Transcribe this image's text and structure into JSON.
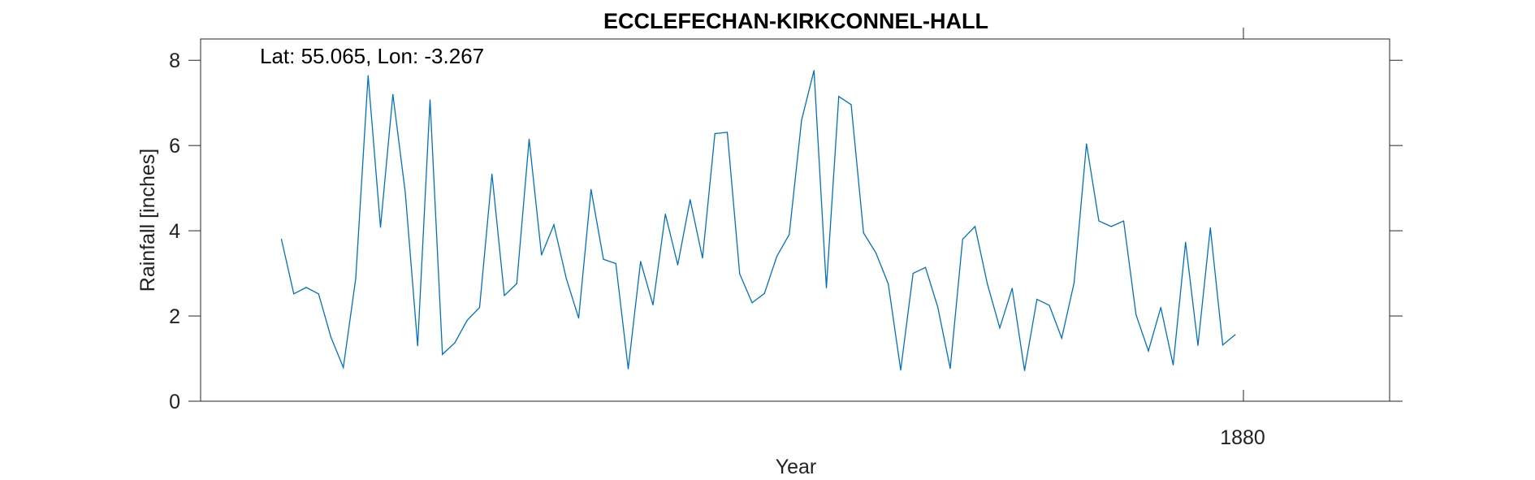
{
  "chart_data": {
    "type": "line",
    "title": "ECCLEFECHAN-KIRKCONNEL-HALL",
    "annotation": "Lat: 55.065, Lon: -3.267",
    "xlabel": "Year",
    "ylabel": "Rainfall [inches]",
    "ylim": [
      0,
      8.5
    ],
    "yticks": [
      0,
      2,
      4,
      6,
      8
    ],
    "xtick_labels": [
      "1880"
    ],
    "grid": false,
    "color": "#0072BD",
    "series": [
      {
        "values": [
          3.8,
          2.52,
          2.67,
          2.52,
          1.5,
          0.79,
          2.88,
          7.64,
          4.08,
          7.2,
          4.9,
          1.3,
          7.07,
          1.1,
          1.37,
          1.9,
          2.2,
          5.33,
          2.48,
          2.76,
          6.15,
          3.43,
          4.14,
          2.88,
          1.95,
          4.97,
          3.33,
          3.23,
          0.76,
          3.28,
          2.26,
          4.39,
          3.2,
          4.73,
          3.36,
          6.28,
          6.31,
          2.99,
          2.31,
          2.53,
          3.4,
          3.91,
          6.6,
          7.76,
          2.66,
          7.15,
          6.96,
          3.95,
          3.48,
          2.75,
          0.73,
          3.0,
          3.14,
          2.2,
          0.77,
          3.8,
          4.1,
          2.75,
          1.72,
          2.65,
          0.72,
          2.39,
          2.25,
          1.48,
          2.78,
          6.04,
          4.23,
          4.1,
          4.23,
          2.03,
          1.18,
          2.2,
          0.85,
          3.73,
          1.31,
          4.07,
          1.32,
          1.56
        ]
      }
    ]
  }
}
